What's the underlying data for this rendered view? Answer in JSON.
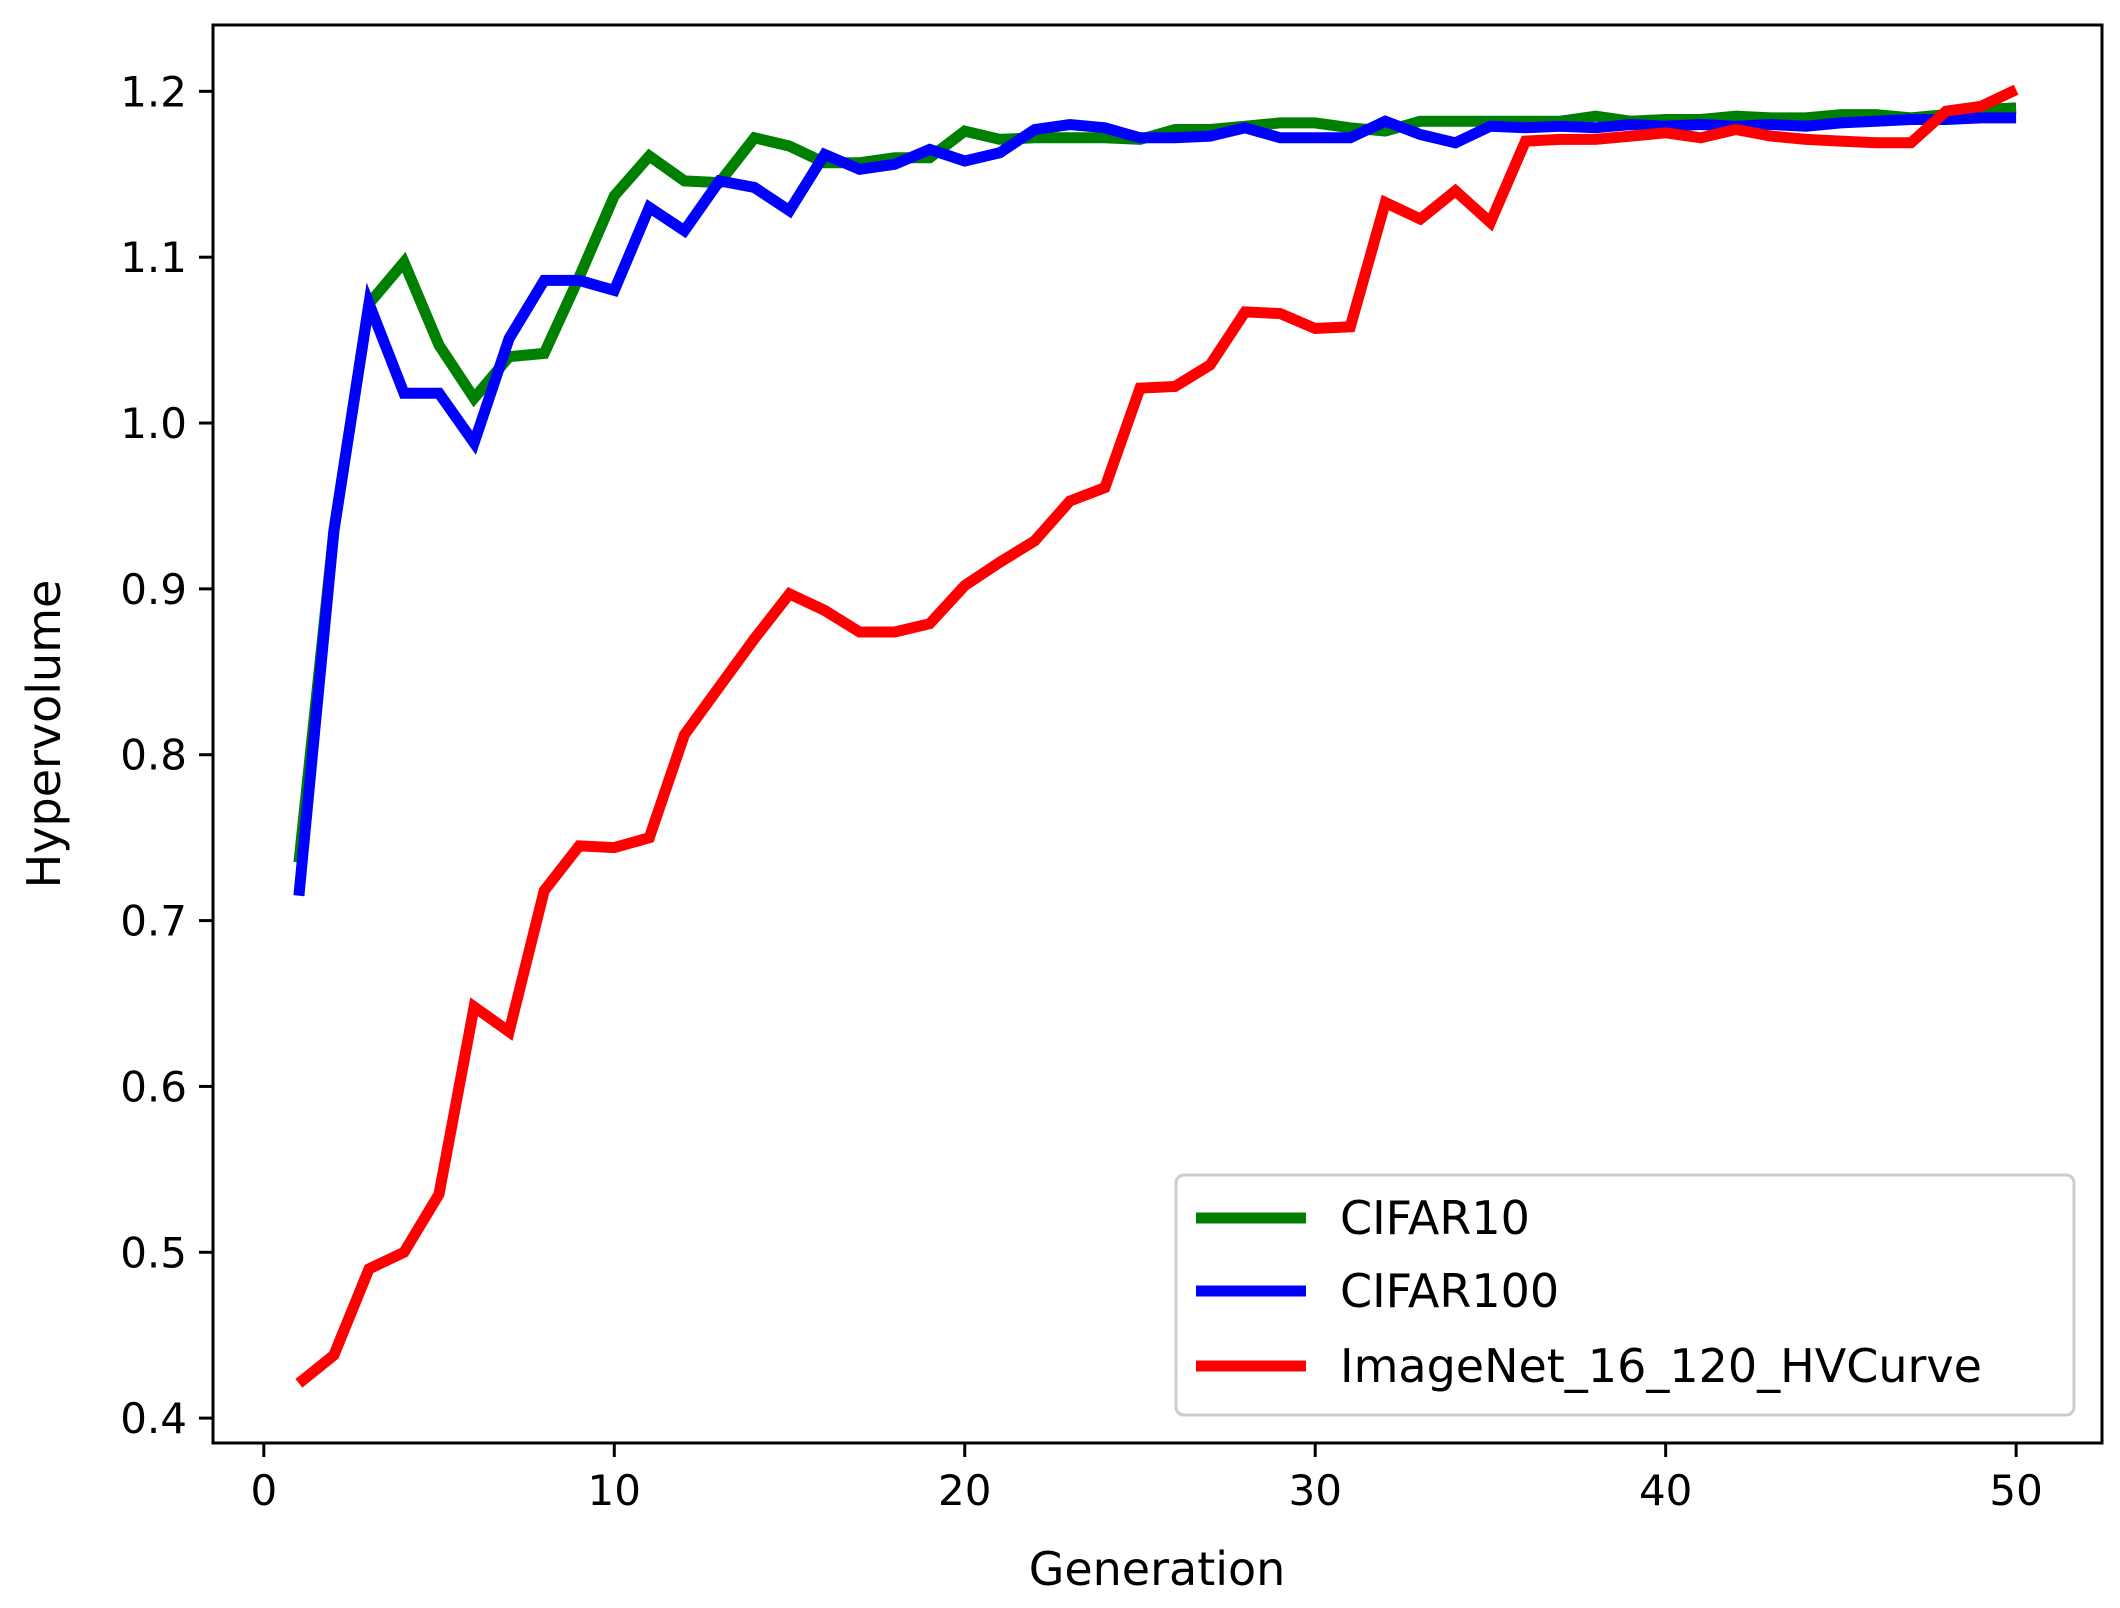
{
  "chart_data": {
    "type": "line",
    "title": "",
    "xlabel": "Generation",
    "ylabel": "Hypervolume",
    "xlim": [
      -1.45,
      52.45
    ],
    "ylim": [
      0.385,
      1.24
    ],
    "xticks": [
      0,
      10,
      20,
      30,
      40,
      50
    ],
    "xtick_labels": [
      "0",
      "10",
      "20",
      "30",
      "40",
      "50"
    ],
    "yticks": [
      0.4,
      0.5,
      0.6,
      0.7,
      0.8,
      0.9,
      1.0,
      1.1,
      1.2
    ],
    "ytick_labels": [
      "0.4",
      "0.5",
      "0.6",
      "0.7",
      "0.8",
      "0.9",
      "1.0",
      "1.1",
      "1.2"
    ],
    "grid": false,
    "legend_position": "lower-right",
    "x": [
      1,
      2,
      3,
      4,
      5,
      6,
      7,
      8,
      9,
      10,
      11,
      12,
      13,
      14,
      15,
      16,
      17,
      18,
      19,
      20,
      21,
      22,
      23,
      24,
      25,
      26,
      27,
      28,
      29,
      30,
      31,
      32,
      33,
      34,
      35,
      36,
      37,
      38,
      39,
      40,
      41,
      42,
      43,
      44,
      45,
      46,
      47,
      48,
      49,
      50
    ],
    "series": [
      {
        "name": "CIFAR10",
        "color": "#008000",
        "values": [
          0.735,
          0.935,
          1.072,
          1.097,
          1.047,
          1.015,
          1.04,
          1.042,
          1.088,
          1.137,
          1.161,
          1.146,
          1.145,
          1.172,
          1.167,
          1.157,
          1.157,
          1.16,
          1.16,
          1.176,
          1.171,
          1.172,
          1.172,
          1.172,
          1.171,
          1.177,
          1.177,
          1.179,
          1.181,
          1.181,
          1.178,
          1.176,
          1.182,
          1.182,
          1.182,
          1.182,
          1.182,
          1.185,
          1.182,
          1.183,
          1.183,
          1.185,
          1.184,
          1.184,
          1.186,
          1.186,
          1.184,
          1.186,
          1.189,
          1.19
        ]
      },
      {
        "name": "CIFAR100",
        "color": "#0000ff",
        "values": [
          0.715,
          0.935,
          1.072,
          1.018,
          1.018,
          0.988,
          1.051,
          1.086,
          1.086,
          1.08,
          1.13,
          1.116,
          1.146,
          1.142,
          1.128,
          1.162,
          1.153,
          1.156,
          1.165,
          1.158,
          1.163,
          1.177,
          1.18,
          1.178,
          1.172,
          1.172,
          1.173,
          1.178,
          1.172,
          1.172,
          1.172,
          1.182,
          1.174,
          1.169,
          1.179,
          1.178,
          1.179,
          1.178,
          1.18,
          1.179,
          1.18,
          1.179,
          1.18,
          1.179,
          1.181,
          1.182,
          1.183,
          1.183,
          1.184,
          1.184
        ]
      },
      {
        "name": "ImageNet_16_120_HVCurve",
        "color": "#ff0000",
        "values": [
          0.421,
          0.438,
          0.49,
          0.5,
          0.535,
          0.648,
          0.633,
          0.718,
          0.745,
          0.744,
          0.75,
          0.812,
          0.841,
          0.87,
          0.897,
          0.887,
          0.874,
          0.874,
          0.879,
          0.902,
          0.916,
          0.929,
          0.953,
          0.961,
          1.021,
          1.022,
          1.035,
          1.067,
          1.066,
          1.057,
          1.058,
          1.133,
          1.123,
          1.14,
          1.121,
          1.17,
          1.171,
          1.171,
          1.173,
          1.175,
          1.172,
          1.177,
          1.173,
          1.171,
          1.17,
          1.169,
          1.169,
          1.188,
          1.191,
          1.201
        ]
      }
    ]
  }
}
